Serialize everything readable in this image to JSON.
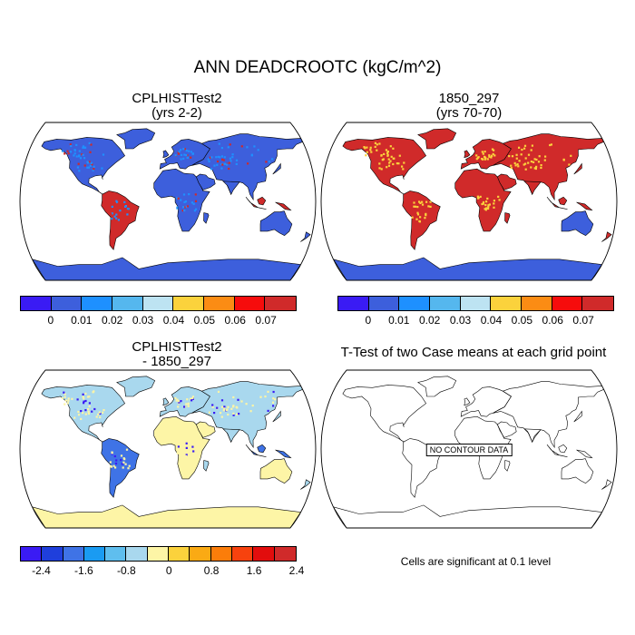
{
  "figure": {
    "title": "ANN DEADCROOTC (kgC/m^2)"
  },
  "panels": [
    {
      "id": "top-left",
      "title_line1": "CPLHISTTest2",
      "title_line2": "(yrs 2-2)",
      "fill_style": "mostly-low",
      "colorbar": "abs"
    },
    {
      "id": "top-right",
      "title_line1": "1850_297",
      "title_line2": "(yrs 70-70)",
      "fill_style": "mostly-high",
      "colorbar": "abs"
    },
    {
      "id": "bottom-left",
      "title_line1": "CPLHISTTest2",
      "title_line2": "- 1850_297",
      "fill_style": "difference",
      "colorbar": "diff"
    },
    {
      "id": "bottom-right",
      "title_line1": "T-Test of two Case means at each grid point",
      "title_line2": "",
      "fill_style": "outline-only",
      "annotation": "NO CONTOUR DATA",
      "note": "Cells are significant at 0.1 level"
    }
  ],
  "colorbars": {
    "abs": {
      "colors": [
        "#3a1bf4",
        "#3d5fdc",
        "#1e90ff",
        "#55b7ee",
        "#bde3f2",
        "#fbd23c",
        "#fb8c14",
        "#f60c0c",
        "#d02a2a"
      ],
      "tick_labels": [
        "0",
        "0.01",
        "0.02",
        "0.03",
        "0.04",
        "0.05",
        "0.06",
        "0.07"
      ]
    },
    "diff": {
      "colors": [
        "#3a1bf4",
        "#1f3fdc",
        "#3f73e6",
        "#1a9bf2",
        "#5fbeee",
        "#a9d8ee",
        "#fdf5a6",
        "#fbd23c",
        "#faaa14",
        "#fb7d0a",
        "#f7420e",
        "#e20d0d",
        "#d02a2a"
      ],
      "tick_labels": [
        "-2.4",
        "-1.6",
        "-0.8",
        "0",
        "0.8",
        "1.6",
        "2.4"
      ]
    }
  }
}
